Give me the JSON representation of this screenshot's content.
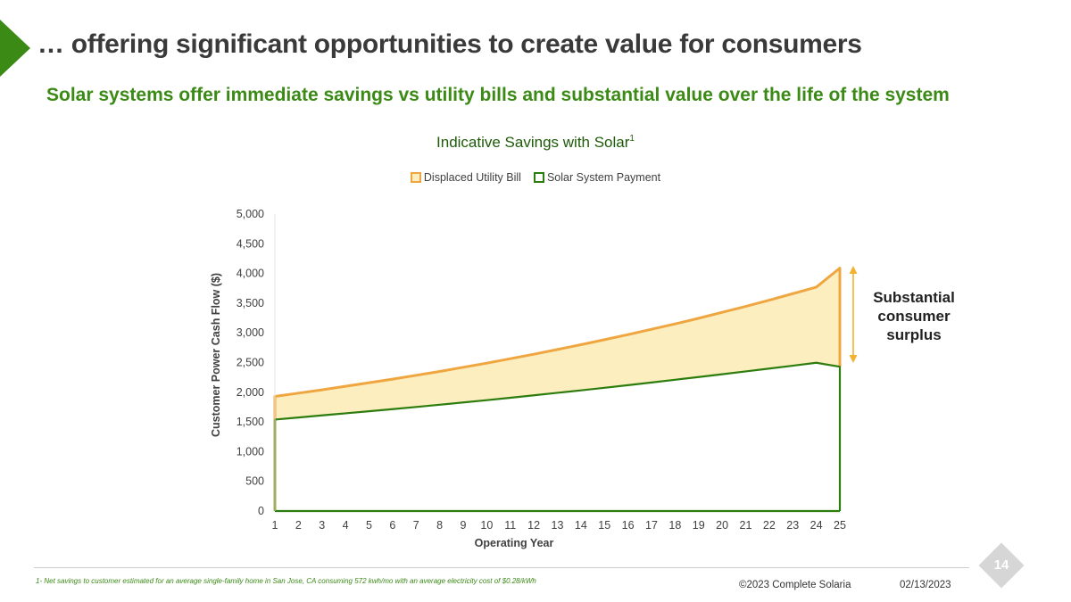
{
  "slide": {
    "title": "… offering significant opportunities to create value for consumers",
    "subtitle": "Solar systems offer immediate savings vs utility bills and substantial value over the life of the system",
    "annotation": "Substantial consumer surplus",
    "footnote": "1- Net savings to customer estimated for an average single-family home in San Jose, CA consuming 572 kwh/mo with an average electricity cost of $0.28/kWh",
    "copyright": "©2023 Complete Solaria",
    "date": "02/13/2023",
    "page_number": "14",
    "accent_color": "#3a8a15"
  },
  "chart_data": {
    "type": "area",
    "title": "Indicative Savings with Solar",
    "title_superscript": "1",
    "xlabel": "Operating Year",
    "ylabel": "Customer Power Cash Flow ($)",
    "ylim": [
      0,
      5000
    ],
    "yticks": [
      "0",
      "500",
      "1,000",
      "1,500",
      "2,000",
      "2,500",
      "3,000",
      "3,500",
      "4,000",
      "4,500",
      "5,000"
    ],
    "x": [
      1,
      2,
      3,
      4,
      5,
      6,
      7,
      8,
      9,
      10,
      11,
      12,
      13,
      14,
      15,
      16,
      17,
      18,
      19,
      20,
      21,
      22,
      23,
      24,
      25
    ],
    "series": [
      {
        "name": "Displaced Utility Bill",
        "color": "#f0a640",
        "fill": "#fdeec0",
        "values": [
          1930,
          1985,
          2040,
          2100,
          2160,
          2220,
          2285,
          2350,
          2420,
          2490,
          2565,
          2640,
          2720,
          2800,
          2885,
          2970,
          3060,
          3150,
          3245,
          3345,
          3445,
          3550,
          3660,
          3770,
          4090
        ]
      },
      {
        "name": "Solar System Payment",
        "color": "#2d7d0e",
        "fill": "#ffffff",
        "values": [
          1540,
          1575,
          1610,
          1645,
          1680,
          1715,
          1752,
          1790,
          1828,
          1867,
          1907,
          1948,
          1990,
          2032,
          2075,
          2119,
          2164,
          2210,
          2256,
          2303,
          2351,
          2399,
          2447,
          2496,
          2430
        ]
      }
    ],
    "legend_position": "top-center",
    "annotation": "Substantial consumer surplus"
  }
}
